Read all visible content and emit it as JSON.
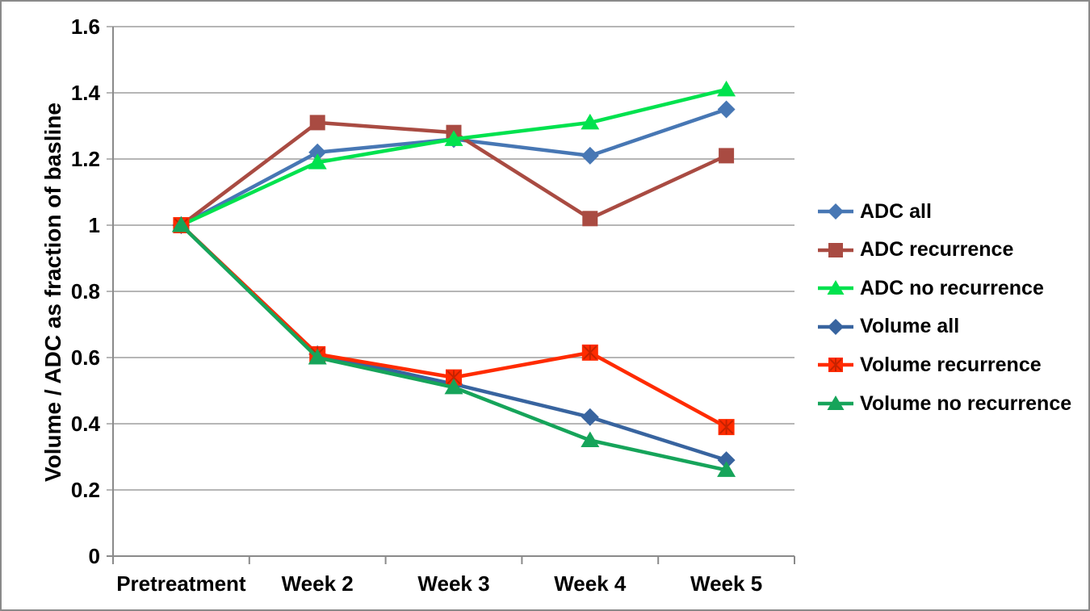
{
  "chart_data": {
    "type": "line",
    "title": "",
    "xlabel": "",
    "ylabel": "Volume / ADC as fraction of basline",
    "ylim": [
      0,
      1.6
    ],
    "yticks": [
      0,
      0.2,
      0.4,
      0.6,
      0.8,
      1,
      1.2,
      1.4,
      1.6
    ],
    "ytick_labels": [
      "0",
      "0.2",
      "0.4",
      "0.6",
      "0.8",
      "1",
      "1.2",
      "1.4",
      "1.6"
    ],
    "grid": true,
    "legend_position": "right",
    "categories": [
      "Pretreatment",
      "Week 2",
      "Week 3",
      "Week 4",
      "Week 5"
    ],
    "series": [
      {
        "name": "ADC all",
        "color": "#4777B4",
        "marker": "diamond",
        "values": [
          1.0,
          1.22,
          1.26,
          1.21,
          1.35
        ]
      },
      {
        "name": "ADC recurrence",
        "color": "#A94B42",
        "marker": "square",
        "values": [
          1.0,
          1.31,
          1.28,
          1.02,
          1.21
        ]
      },
      {
        "name": "ADC no recurrence",
        "color": "#00E24E",
        "marker": "triangle",
        "values": [
          1.0,
          1.19,
          1.26,
          1.31,
          1.41
        ]
      },
      {
        "name": "Volume all",
        "color": "#38649F",
        "marker": "diamond",
        "values": [
          1.0,
          0.61,
          0.52,
          0.42,
          0.29
        ]
      },
      {
        "name": "Volume recurrence",
        "color": "#FF2B00",
        "marker": "square-x",
        "values": [
          1.0,
          0.61,
          0.54,
          0.615,
          0.39
        ]
      },
      {
        "name": "Volume no recurrence",
        "color": "#16A45A",
        "marker": "triangle",
        "values": [
          1.0,
          0.6,
          0.51,
          0.35,
          0.26
        ]
      }
    ]
  },
  "colors": {
    "background": "#FFFFFF",
    "grid": "#9E9E9E",
    "axis": "#8A8A8A",
    "text": "#000000",
    "marker_x_stroke": "#C62200"
  }
}
